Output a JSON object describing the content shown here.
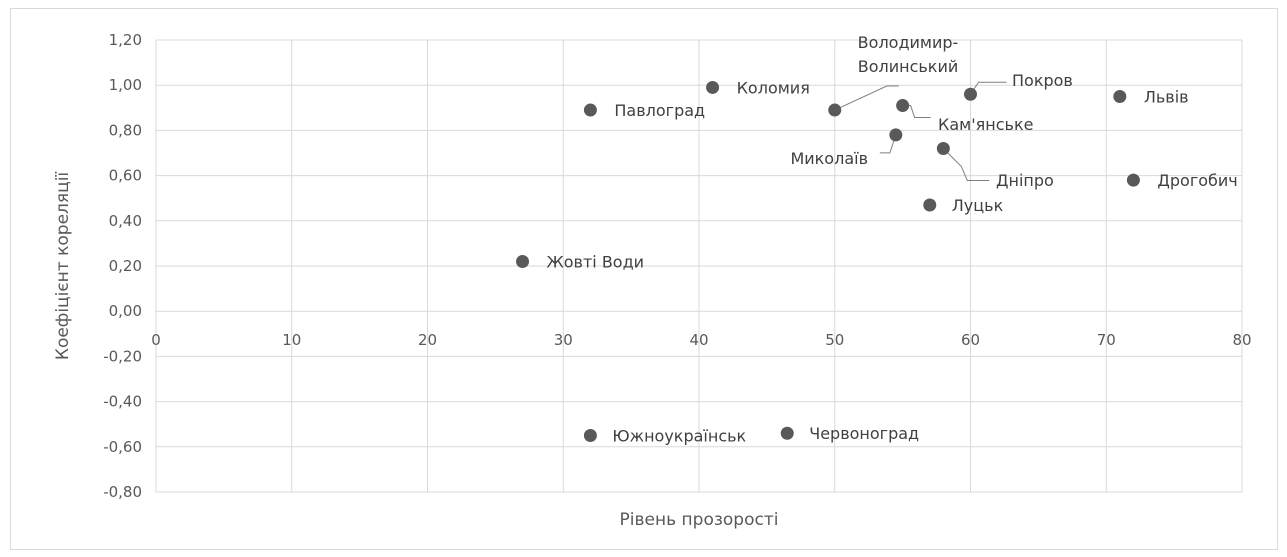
{
  "chart_data": {
    "type": "scatter",
    "title": "",
    "xlabel": "Рівень прозорості",
    "ylabel": "Коефіцієнт кореляції",
    "xlim": [
      0,
      80
    ],
    "ylim": [
      -0.8,
      1.2
    ],
    "x_ticks": [
      0,
      10,
      20,
      30,
      40,
      50,
      60,
      70,
      80
    ],
    "y_ticks": [
      "1,20",
      "1,00",
      "0,80",
      "0,60",
      "0,40",
      "0,20",
      "0,00",
      "-0,20",
      "-0,40",
      "-0,60",
      "-0,80"
    ],
    "y_tick_values": [
      1.2,
      1.0,
      0.8,
      0.6,
      0.4,
      0.2,
      0.0,
      -0.2,
      -0.4,
      -0.6,
      -0.8
    ],
    "grid": true,
    "marker_color": "#595959",
    "points": [
      {
        "label": "Коломия",
        "x": 41,
        "y": 0.99
      },
      {
        "label": "Павлоград",
        "x": 32,
        "y": 0.89
      },
      {
        "label": "Володимир-Волинський",
        "x": 50,
        "y": 0.89
      },
      {
        "label": "Кам'янське",
        "x": 55,
        "y": 0.91
      },
      {
        "label": "Покров",
        "x": 60,
        "y": 0.96
      },
      {
        "label": "Львів",
        "x": 71,
        "y": 0.95
      },
      {
        "label": "Миколаїв",
        "x": 54.5,
        "y": 0.78
      },
      {
        "label": "Дніпро",
        "x": 58,
        "y": 0.72
      },
      {
        "label": "Дрогобич",
        "x": 72,
        "y": 0.58
      },
      {
        "label": "Луцьк",
        "x": 57,
        "y": 0.47
      },
      {
        "label": "Жовті Води",
        "x": 27,
        "y": 0.22
      },
      {
        "label": "Южноукраїнськ",
        "x": 32,
        "y": -0.55
      },
      {
        "label": "Червоноград",
        "x": 46.5,
        "y": -0.54
      }
    ]
  }
}
